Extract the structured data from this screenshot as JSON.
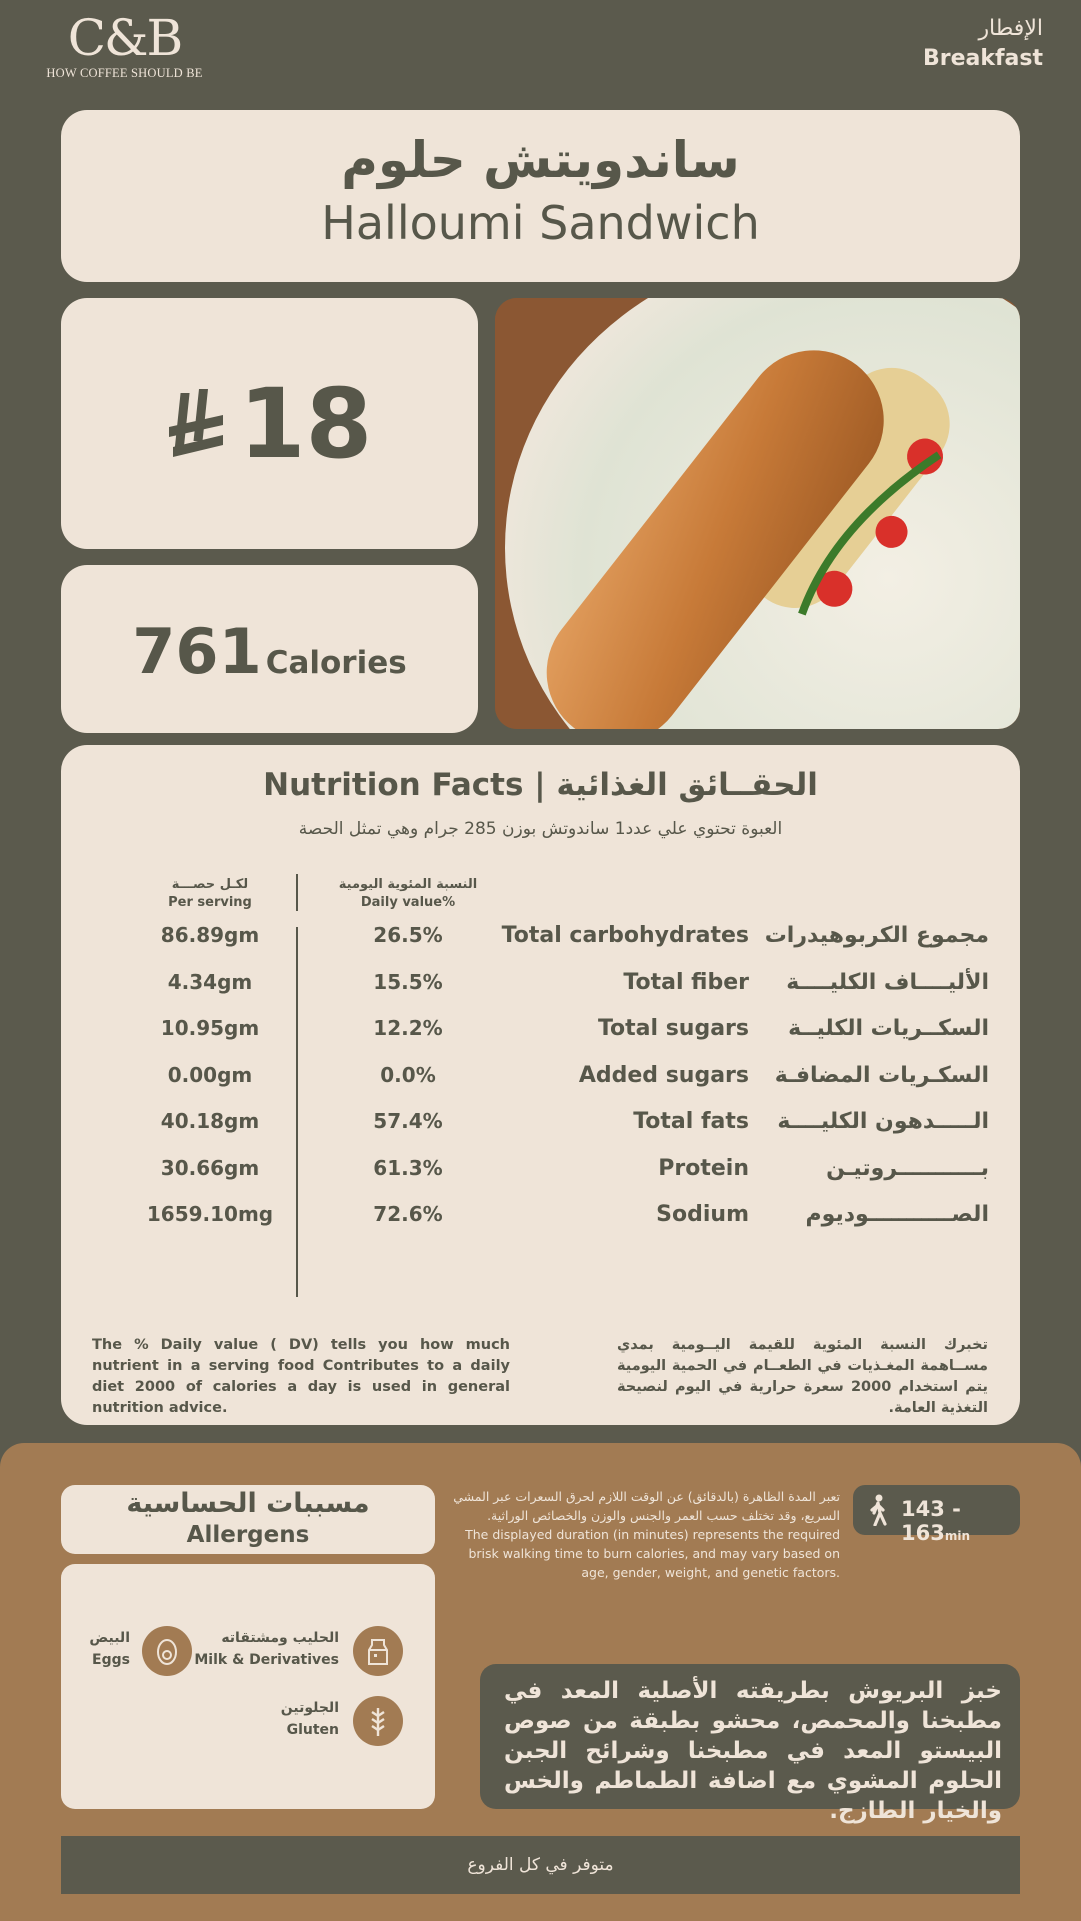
{
  "brand": {
    "logo_text": "C&B",
    "tagline": "HOW COFFEE SHOULD BE"
  },
  "category": {
    "ar": "الإفطار",
    "en": "Breakfast"
  },
  "product": {
    "name_ar": "ساندويتش حلوم",
    "name_en": "Halloumi Sandwich",
    "price": "18",
    "currency_icon": "saudi-riyal-icon",
    "calories": "761",
    "calories_label": "Calories"
  },
  "nutrition": {
    "title": "Nutrition Facts | الحقــائق الغذائية",
    "subtitle": "العبوة تحتوي علي عدد1 ساندوتش بوزن 285 جرام وهي تمثل الحصة",
    "col_serving_ar": "لكـل حصـــة",
    "col_serving_en": "Per serving",
    "col_dv_ar": "النسبة المئوية اليومية",
    "col_dv_en": "Daily value%",
    "rows": [
      {
        "serving": "86.89gm",
        "dv": "26.5%",
        "en": "Total carbohydrates",
        "ar": "مجموع الكربوهيدرات"
      },
      {
        "serving": "4.34gm",
        "dv": "15.5%",
        "en": "Total fiber",
        "ar": "الأليــــاف الكليــــة"
      },
      {
        "serving": "10.95gm",
        "dv": "12.2%",
        "en": "Total sugars",
        "ar": "السكــريات الكليــة"
      },
      {
        "serving": "0.00gm",
        "dv": "0.0%",
        "en": "Added sugars",
        "ar": "السكـريات المضافـة"
      },
      {
        "serving": "40.18gm",
        "dv": "57.4%",
        "en": "Total fats",
        "ar": "الـــــدهون الكليــــة"
      },
      {
        "serving": "30.66gm",
        "dv": "61.3%",
        "en": "Protein",
        "ar": "بـــــــــــروتيـن"
      },
      {
        "serving": "1659.10mg",
        "dv": "72.6%",
        "en": "Sodium",
        "ar": "الصـــــــــــوديوم"
      }
    ],
    "note_en": "The % Daily value ( DV) tells you how much nutrient in a serving food Contributes to a daily diet 2000 of calories a day is used in general nutrition advice.",
    "note_ar": "تخبرك النسبة المئوية للقيمة اليــومية بمدي مســاهمة المغـذيات في الطعــام في الحمية اليومية يتم استخدام 2000 سعرة حرارية في اليوم لنصيحة التغذية العامة."
  },
  "allergens": {
    "title_ar": "مسببات الحساسية",
    "title_en": "Allergens",
    "items": [
      {
        "ar": "الحليب ومشتقاته",
        "en": "Milk & Derivatives",
        "icon": "milk-carton-icon"
      },
      {
        "ar": "البيض",
        "en": "Eggs",
        "icon": "egg-icon"
      },
      {
        "ar": "الجلوتين",
        "en": "Gluten",
        "icon": "wheat-icon"
      }
    ]
  },
  "walking": {
    "text_ar": "تعبر المدة الظاهرة (بالدقائق) عن الوقت اللازم لحرق السعرات عبر المشي السريع، وقد تختلف حسب العمر والجنس والوزن والخصائص الوراثية.",
    "text_en": "The displayed duration (in minutes) represents the required brisk walking time to burn calories, and may vary based on age, gender, weight, and genetic factors.",
    "range": "143 - 163",
    "unit": "min"
  },
  "description": "خبز البريوش بطريقته الأصلية المعد في مطبخنا والمحمص، محشو بطبقة من صوص البيستو المعد في مطبخنا وشرائح الجبن الحلوم المشوي مع اضافة الطماطم والخس والخيار الطازج.",
  "availability": "متوفر في كل الفروع",
  "colors": {
    "dark": "#5b5a4d",
    "cream": "#efe4d8",
    "brown": "#a27b53",
    "text": "#57574a"
  }
}
